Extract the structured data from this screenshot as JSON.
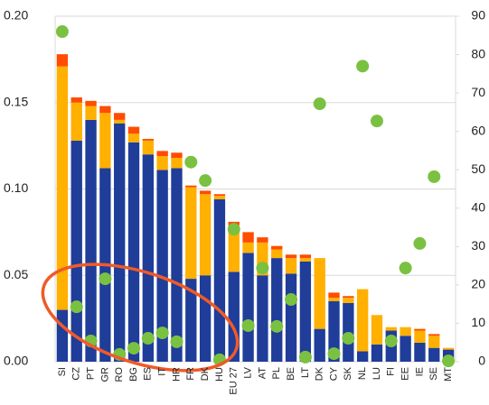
{
  "chart_data": {
    "type": "bar",
    "stacked": true,
    "categories": [
      "SI",
      "CZ",
      "PT",
      "GR",
      "RO",
      "BG",
      "ES",
      "IT",
      "HR",
      "FR",
      "DK",
      "HU",
      "EU 27",
      "LV",
      "AT",
      "PL",
      "BE",
      "LT",
      "DK",
      "CY",
      "SK",
      "NL",
      "LU",
      "FI",
      "EE",
      "IE",
      "SE",
      "MT"
    ],
    "series": [
      {
        "color": "#1f3d99",
        "values": [
          0.03,
          0.128,
          0.14,
          0.112,
          0.138,
          0.127,
          0.12,
          0.111,
          0.112,
          0.048,
          0.05,
          0.094,
          0.052,
          0.063,
          0.05,
          0.06,
          0.051,
          0.058,
          0.019,
          0.035,
          0.034,
          0.006,
          0.01,
          0.018,
          0.015,
          0.011,
          0.008,
          0.007
        ]
      },
      {
        "color": "#ffb000",
        "values": [
          0.141,
          0.022,
          0.008,
          0.032,
          0.002,
          0.005,
          0.008,
          0.008,
          0.006,
          0.053,
          0.047,
          0.002,
          0.027,
          0.006,
          0.019,
          0.005,
          0.009,
          0.002,
          0.041,
          0.002,
          0.003,
          0.036,
          0.017,
          0.002,
          0.005,
          0.007,
          0.007,
          0.001
        ]
      },
      {
        "color": "#ff4c00",
        "values": [
          0.007,
          0.003,
          0.003,
          0.004,
          0.004,
          0.004,
          0.001,
          0.003,
          0.003,
          0.001,
          0.002,
          0.001,
          0.002,
          0.006,
          0.003,
          0.002,
          0.002,
          0.002,
          0,
          0.003,
          0.001,
          0,
          0,
          0,
          0,
          0.001,
          0.001,
          0
        ]
      },
      {
        "type": "scatter",
        "axis": "y2",
        "color": "#7ac142",
        "values": [
          86,
          14.3,
          5.4,
          21.6,
          1.9,
          3.5,
          6.1,
          7.5,
          5.2,
          52,
          47.2,
          0.5,
          34.5,
          9.4,
          24.4,
          9.2,
          16.2,
          1.2,
          67.2,
          2.1,
          6.1,
          77,
          62.7,
          5.4,
          24.4,
          30.8,
          48.2,
          0.2
        ]
      }
    ],
    "ylim": [
      0,
      0.2
    ],
    "yticks": [
      {
        "value": 0,
        "label": "0.00"
      },
      {
        "value": 0.05,
        "label": "0.05"
      },
      {
        "value": 0.1,
        "label": "0.10"
      },
      {
        "value": 0.15,
        "label": "0.15"
      },
      {
        "value": 0.2,
        "label": "0.20"
      }
    ],
    "y2lim": [
      0,
      90
    ],
    "y2ticks": [
      0,
      10,
      20,
      30,
      40,
      50,
      60,
      70,
      80,
      90
    ],
    "grid": true
  }
}
